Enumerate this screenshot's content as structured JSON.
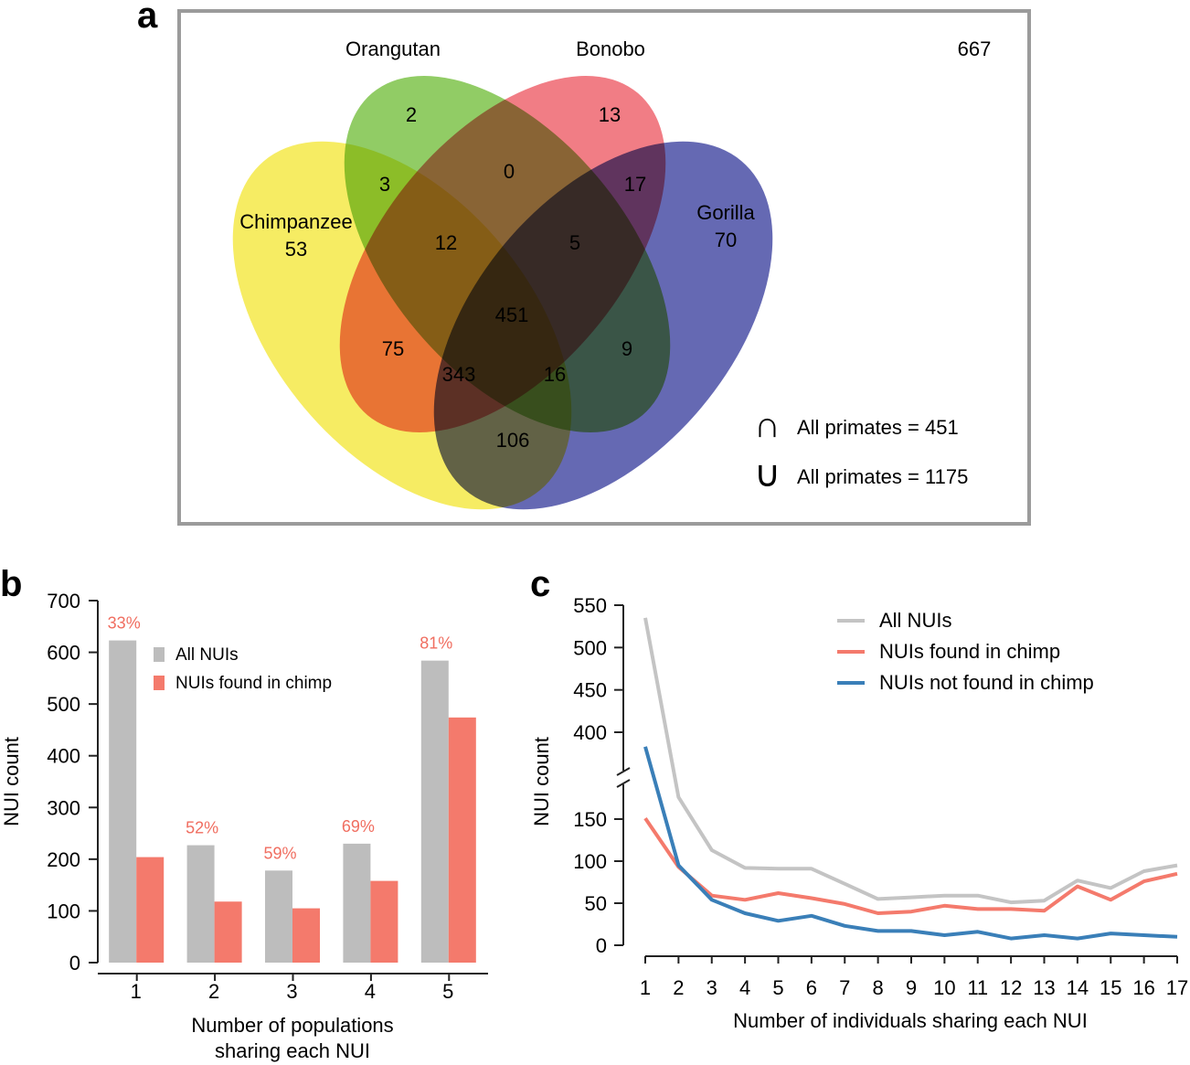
{
  "colors": {
    "frame": "#9b9b9b",
    "chimp": "#f5ea52",
    "orangutan": "#7ec34a",
    "bonobo": "#ef6670",
    "gorilla": "#4a4fa6",
    "bar_all": "#bdbdbd",
    "bar_chimp": "#f47a6c",
    "pct": "#f06e60",
    "line_all": "#c4c4c4",
    "line_chimp": "#f47a6c",
    "line_notchimp": "#3a7fb8"
  },
  "panel_labels": {
    "a": "a",
    "b": "b",
    "c": "c"
  },
  "chart_data": [
    {
      "type": "venn",
      "panel": "a",
      "sets": [
        "Chimpanzee",
        "Orangutan",
        "Bonobo",
        "Gorilla"
      ],
      "set_labels": {
        "chimp": "Chimpanzee",
        "orangutan": "Orangutan",
        "bonobo": "Bonobo",
        "gorilla": "Gorilla"
      },
      "outside": "667",
      "regions": {
        "chimp_only": "53",
        "orangutan_only": "2",
        "bonobo_only": "13",
        "gorilla_only": "70",
        "chimp_orangutan": "3",
        "orangutan_bonobo": "0",
        "bonobo_gorilla": "17",
        "chimp_orangutan_bonobo": "12",
        "orangutan_bonobo_gorilla": "5",
        "all_four": "451",
        "chimp_bonobo": "75",
        "orangutan_gorilla": "9",
        "chimp_bonobo_gorilla": "343",
        "chimp_orangutan_gorilla": "16",
        "chimp_gorilla": "106"
      },
      "legend": {
        "intersection_symbol": "∩",
        "intersection_text": "All primates = 451",
        "union_symbol": "∪",
        "union_text": "All primates = 1175"
      }
    },
    {
      "type": "bar",
      "panel": "b",
      "categories": [
        "1",
        "2",
        "3",
        "4",
        "5"
      ],
      "series": [
        {
          "name": "All NUIs",
          "values": [
            623,
            227,
            178,
            230,
            584
          ]
        },
        {
          "name": "NUIs found in chimp",
          "values": [
            204,
            118,
            105,
            158,
            474
          ]
        }
      ],
      "annotations": [
        "33%",
        "52%",
        "59%",
        "69%",
        "81%"
      ],
      "yticks": [
        "0",
        "100",
        "200",
        "300",
        "400",
        "500",
        "600",
        "700"
      ],
      "ylim": [
        0,
        700
      ],
      "ylabel": "NUI count",
      "xlabel_line1": "Number of populations",
      "xlabel_line2": "sharing each NUI",
      "legend_position": "top-left"
    },
    {
      "type": "line",
      "panel": "c",
      "x": [
        1,
        2,
        3,
        4,
        5,
        6,
        7,
        8,
        9,
        10,
        11,
        12,
        13,
        14,
        15,
        16,
        17
      ],
      "xticks": [
        "1",
        "2",
        "3",
        "4",
        "5",
        "6",
        "7",
        "8",
        "9",
        "10",
        "11",
        "12",
        "13",
        "14",
        "15",
        "16",
        "17"
      ],
      "series": [
        {
          "name": "All NUIs",
          "values": [
            535,
            190,
            113,
            92,
            91,
            91,
            73,
            55,
            57,
            59,
            59,
            51,
            53,
            77,
            68,
            88,
            95
          ]
        },
        {
          "name": "NUIs found in chimp",
          "values": [
            151,
            93,
            59,
            54,
            62,
            56,
            49,
            38,
            40,
            47,
            43,
            43,
            41,
            70,
            54,
            76,
            85
          ]
        },
        {
          "name": "NUIs not found in chimp",
          "values": [
            383,
            95,
            54,
            38,
            29,
            35,
            23,
            17,
            17,
            12,
            16,
            8,
            12,
            8,
            14,
            12,
            10
          ]
        }
      ],
      "yticks_lower": [
        "0",
        "50",
        "100",
        "150"
      ],
      "yticks_upper": [
        "400",
        "450",
        "500",
        "550"
      ],
      "axis_break": [
        170,
        380
      ],
      "ylabel": "NUI count",
      "xlabel": "Number of individuals sharing each NUI",
      "legend_position": "top-right"
    }
  ]
}
